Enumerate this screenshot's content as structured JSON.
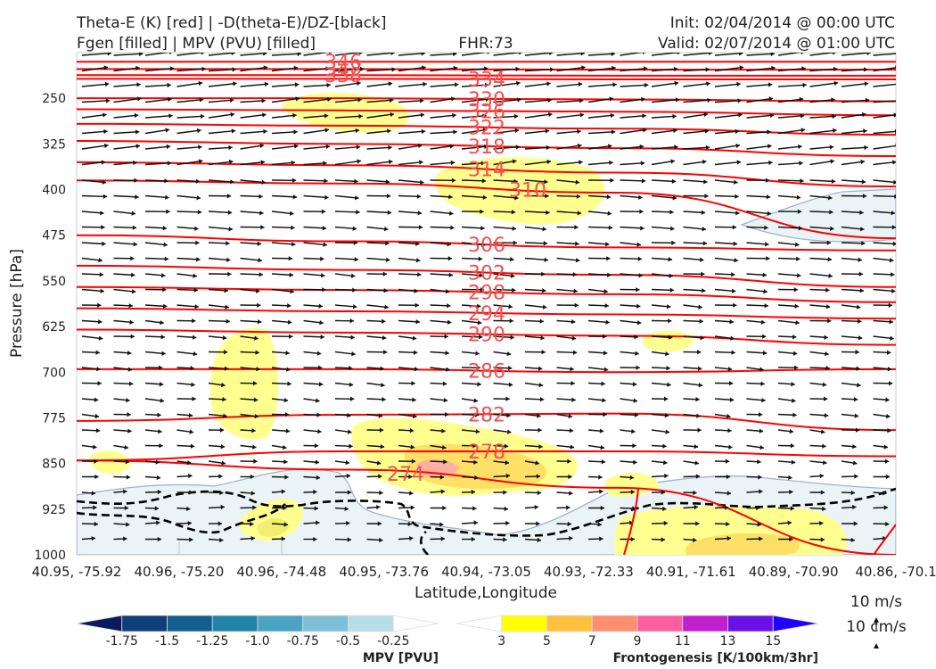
{
  "header": {
    "title_line1": "Theta-E (K) [red] | -D(theta-E)/DZ-[black]",
    "title_line2": "Fgen [filled] | MPV (PVU) [filled]",
    "fhr": "FHR:73",
    "init": "Init: 02/04/2014 @ 00:00 UTC",
    "valid": "Valid: 02/07/2014 @ 01:00 UTC"
  },
  "chart_data": {
    "type": "cross-section",
    "xlabel": "Latitude,Longitude",
    "ylabel": "Pressure [hPa]",
    "ylim": [
      1000,
      175
    ],
    "y_ticks": [
      250,
      325,
      400,
      475,
      550,
      625,
      700,
      775,
      850,
      925,
      1000
    ],
    "x_tick_labels": [
      "40.95, -75.92",
      "40.96, -75.20",
      "40.96, -74.48",
      "40.95, -73.76",
      "40.94, -73.05",
      "40.93, -72.33",
      "40.91, -71.61",
      "40.89, -70.90",
      "40.86, -70.1"
    ],
    "theta_e_contours": [
      {
        "label": "346",
        "p": [
          190,
          190,
          190,
          190
        ]
      },
      {
        "label": "342",
        "p": [
          202,
          202,
          203,
          203
        ]
      },
      {
        "label": "338",
        "p": [
          212,
          212,
          213,
          213
        ]
      },
      {
        "label": "334",
        "p": [
          218,
          218,
          219,
          219
        ]
      },
      {
        "label": "330",
        "p": [
          250,
          250,
          252,
          255
        ]
      },
      {
        "label": "326",
        "p": [
          268,
          270,
          272,
          278
        ]
      },
      {
        "label": "322",
        "p": [
          292,
          295,
          300,
          310
        ]
      },
      {
        "label": "318",
        "p": [
          320,
          325,
          332,
          345
        ]
      },
      {
        "label": "314",
        "p": [
          355,
          360,
          372,
          395
        ]
      },
      {
        "label": "310",
        "p": [
          385,
          390,
          405,
          480
        ]
      },
      {
        "label": "306",
        "p": [
          475,
          485,
          495,
          500
        ]
      },
      {
        "label": "302",
        "p": [
          525,
          532,
          540,
          560
        ]
      },
      {
        "label": "298",
        "p": [
          560,
          565,
          572,
          585
        ]
      },
      {
        "label": "294",
        "p": [
          595,
          600,
          605,
          612
        ]
      },
      {
        "label": "290",
        "p": [
          630,
          635,
          640,
          655
        ]
      },
      {
        "label": "286",
        "p": [
          695,
          695,
          700,
          695
        ]
      },
      {
        "label": "282",
        "p": [
          780,
          770,
          768,
          795
        ]
      },
      {
        "label": "278",
        "p": [
          845,
          830,
          830,
          838
        ]
      },
      {
        "label": "274",
        "p": [
          845,
          860,
          890,
          1000
        ]
      }
    ],
    "mpv_colorbar": {
      "label": "MPV [PVU]",
      "ticks": [
        "-1.75",
        "-1.5",
        "-1.25",
        "-1.0",
        "-0.75",
        "-0.5",
        "-0.25"
      ],
      "colors": [
        "#0b1b5e",
        "#0f3f7a",
        "#115e8f",
        "#1f84a8",
        "#4aa3c2",
        "#7dbfd6",
        "#b8dde8",
        "#ffffff"
      ]
    },
    "fgen_colorbar": {
      "label": "Frontogenesis [K/100km/3hr]",
      "ticks": [
        "3",
        "5",
        "7",
        "9",
        "11",
        "13",
        "15"
      ],
      "colors": [
        "#ffffff",
        "#ffff00",
        "#ffc040",
        "#ff8f70",
        "#ff5fa0",
        "#c020d0",
        "#6a10e8",
        "#2000ff"
      ]
    },
    "wind_key": {
      "u": "10 m/s",
      "w": "10 cm/s"
    }
  },
  "colors": {
    "theta_e": "#ff0000",
    "theta_e_label": "#f05050",
    "arrows": "#111111",
    "mpv_fill": "#eaf4f7",
    "mpv_line": "#9fb4cc",
    "fgen_fill": "#ffff90"
  }
}
